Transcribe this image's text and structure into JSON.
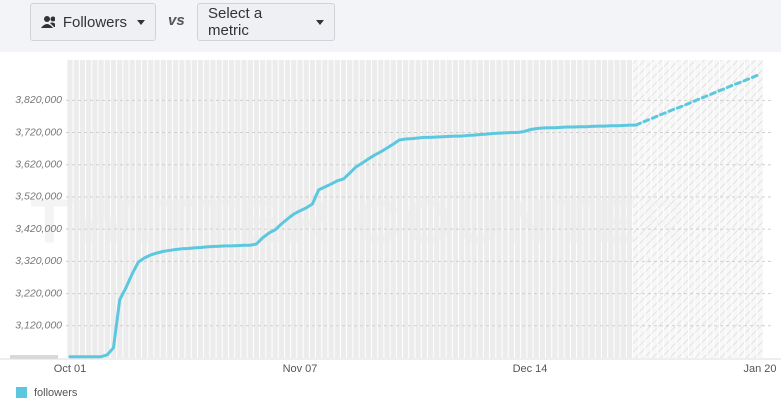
{
  "toolbar": {
    "metric": "Followers",
    "versus": "vs",
    "compare": "Select a metric"
  },
  "chart_data": {
    "type": "line",
    "watermark": "TWITTER COUNTER",
    "categories": [
      "Oct 01",
      null,
      null,
      null,
      null,
      null,
      null,
      null,
      null,
      null,
      null,
      null,
      null,
      null,
      null,
      null,
      null,
      null,
      null,
      null,
      null,
      null,
      null,
      null,
      null,
      null,
      null,
      null,
      null,
      null,
      null,
      null,
      null,
      null,
      null,
      null,
      null,
      "Nov 07",
      null,
      null,
      null,
      null,
      null,
      null,
      null,
      null,
      null,
      null,
      null,
      null,
      null,
      null,
      null,
      null,
      null,
      null,
      null,
      null,
      null,
      null,
      null,
      null,
      null,
      null,
      null,
      null,
      null,
      null,
      null,
      null,
      null,
      null,
      null,
      null,
      "Dec 14",
      null,
      null,
      null,
      null,
      null,
      null,
      null,
      null,
      null,
      null,
      null,
      null,
      null,
      null,
      null,
      null,
      null,
      null,
      null,
      null,
      null,
      null,
      null,
      null,
      null,
      null,
      null,
      null,
      null,
      null,
      null,
      null,
      null,
      null,
      null,
      null,
      "Jan 20"
    ],
    "series": [
      {
        "name": "followers",
        "color": "#5bc8e0",
        "forecast_from": 91,
        "values": [
          3024000,
          3024000,
          3024000,
          3024000,
          3024000,
          3024000,
          3030000,
          3052000,
          3201000,
          3238000,
          3281000,
          3318000,
          3331000,
          3340000,
          3346000,
          3351000,
          3354000,
          3357000,
          3359000,
          3360000,
          3362000,
          3363000,
          3365000,
          3366000,
          3367000,
          3368000,
          3368000,
          3369000,
          3370000,
          3370000,
          3374000,
          3393000,
          3408000,
          3418000,
          3436000,
          3452000,
          3467000,
          3477000,
          3486000,
          3498000,
          3542000,
          3551000,
          3560000,
          3570000,
          3576000,
          3594000,
          3613000,
          3625000,
          3638000,
          3650000,
          3660000,
          3672000,
          3684000,
          3697000,
          3700000,
          3701000,
          3703000,
          3705000,
          3705000,
          3706000,
          3707000,
          3708000,
          3709000,
          3709000,
          3711000,
          3712000,
          3714000,
          3715000,
          3717000,
          3718000,
          3719000,
          3720000,
          3720000,
          3723000,
          3729000,
          3732000,
          3734000,
          3735000,
          3735000,
          3736000,
          3737000,
          3737000,
          3738000,
          3738000,
          3739000,
          3740000,
          3740000,
          3741000,
          3741000,
          3742000,
          3743000,
          3743000,
          3751000,
          3759000,
          3767000,
          3775000,
          3783000,
          3791000,
          3798000,
          3806000,
          3814000,
          3822000,
          3830000,
          3838000,
          3846000,
          3854000,
          3862000,
          3870000,
          3877000,
          3885000,
          3893000,
          3901000
        ]
      }
    ],
    "ylim": [
      3020000,
      3970000
    ],
    "yticks": [
      {
        "value": 3120000,
        "label": "3,120,000"
      },
      {
        "value": 3220000,
        "label": "3,220,000"
      },
      {
        "value": 3320000,
        "label": "3,320,000"
      },
      {
        "value": 3420000,
        "label": "3,420,000"
      },
      {
        "value": 3520000,
        "label": "3,520,000"
      },
      {
        "value": 3620000,
        "label": "3,620,000"
      },
      {
        "value": 3720000,
        "label": "3,720,000"
      },
      {
        "value": 3820000,
        "label": "3,820,000"
      }
    ],
    "grid": true
  }
}
